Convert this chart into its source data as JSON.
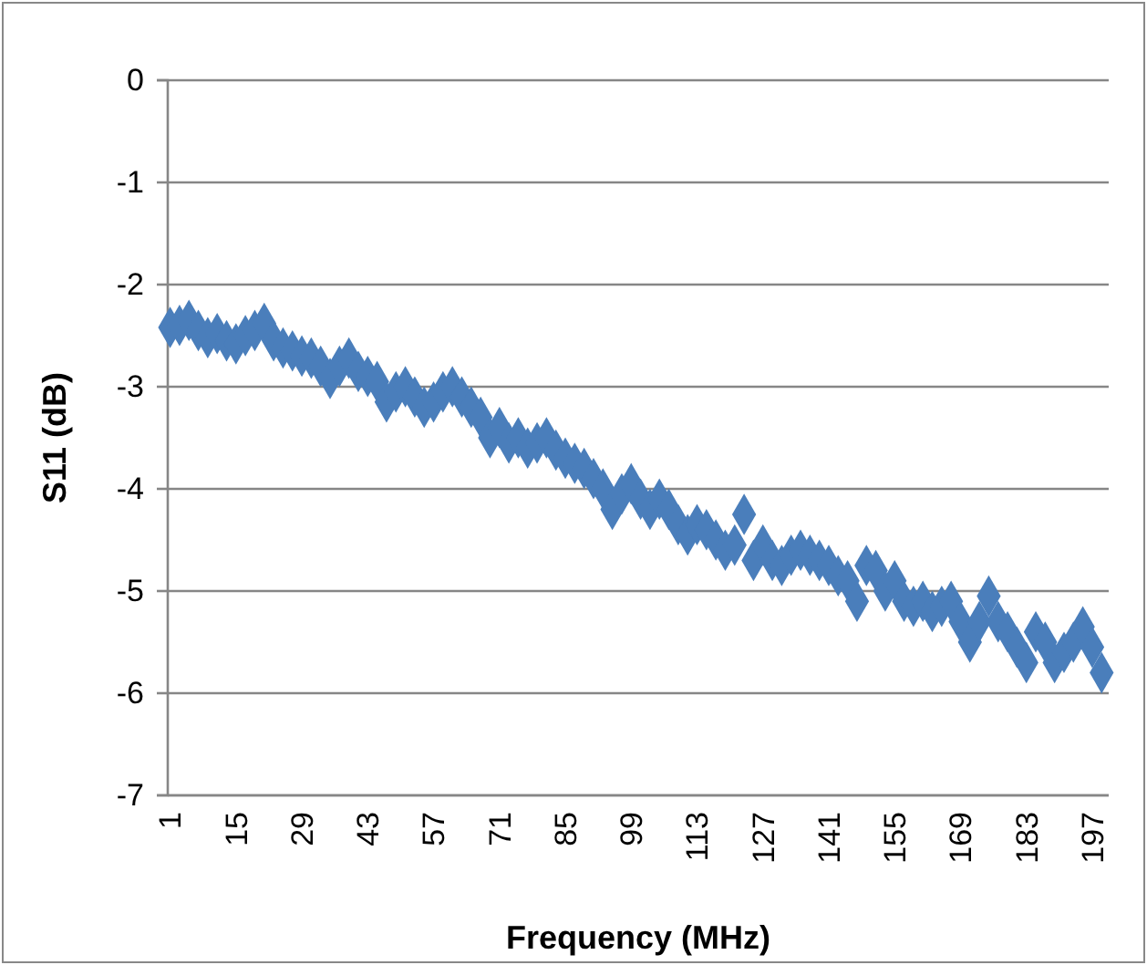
{
  "chart_data": {
    "type": "scatter",
    "xlabel": "Frequency (MHz)",
    "ylabel": "S11 (dB)",
    "marker": "diamond",
    "grid": "y",
    "color": "#4a7ebb",
    "x": [
      1,
      3,
      5,
      7,
      9,
      11,
      13,
      15,
      17,
      19,
      21,
      23,
      25,
      27,
      29,
      31,
      33,
      35,
      37,
      39,
      41,
      43,
      45,
      47,
      49,
      51,
      53,
      55,
      57,
      59,
      61,
      63,
      65,
      67,
      69,
      71,
      73,
      75,
      77,
      79,
      81,
      83,
      85,
      87,
      89,
      91,
      93,
      95,
      97,
      99,
      101,
      103,
      105,
      107,
      109,
      111,
      113,
      115,
      117,
      119,
      121,
      123,
      125,
      127,
      129,
      131,
      133,
      135,
      137,
      139,
      141,
      143,
      145,
      147,
      149,
      151,
      153,
      155,
      157,
      159,
      161,
      163,
      165,
      167,
      169,
      171,
      173,
      175,
      177,
      179,
      181,
      183,
      185,
      187,
      189,
      191,
      193,
      195,
      197,
      199
    ],
    "values": [
      -2.42,
      -2.4,
      -2.35,
      -2.45,
      -2.52,
      -2.48,
      -2.55,
      -2.58,
      -2.5,
      -2.45,
      -2.38,
      -2.55,
      -2.62,
      -2.65,
      -2.7,
      -2.72,
      -2.8,
      -2.92,
      -2.8,
      -2.72,
      -2.85,
      -2.9,
      -2.95,
      -3.15,
      -3.05,
      -3.0,
      -3.1,
      -3.2,
      -3.15,
      -3.05,
      -3.0,
      -3.1,
      -3.2,
      -3.3,
      -3.5,
      -3.4,
      -3.55,
      -3.5,
      -3.6,
      -3.55,
      -3.5,
      -3.62,
      -3.7,
      -3.75,
      -3.8,
      -3.9,
      -4.0,
      -4.2,
      -4.05,
      -3.95,
      -4.1,
      -4.2,
      -4.1,
      -4.2,
      -4.35,
      -4.45,
      -4.35,
      -4.4,
      -4.5,
      -4.6,
      -4.55,
      -4.25,
      -4.7,
      -4.55,
      -4.7,
      -4.75,
      -4.65,
      -4.6,
      -4.65,
      -4.7,
      -4.75,
      -4.85,
      -4.9,
      -5.1,
      -4.75,
      -4.8,
      -5.0,
      -4.9,
      -5.1,
      -5.15,
      -5.1,
      -5.2,
      -5.15,
      -5.1,
      -5.3,
      -5.5,
      -5.3,
      -5.05,
      -5.3,
      -5.4,
      -5.55,
      -5.7,
      -5.4,
      -5.5,
      -5.7,
      -5.6,
      -5.5,
      -5.35,
      -5.55,
      -5.8
    ],
    "xlim": [
      0.5,
      200.5
    ],
    "xticks": [
      1,
      15,
      29,
      43,
      57,
      71,
      85,
      99,
      113,
      127,
      141,
      155,
      169,
      183,
      197
    ],
    "ylim": [
      -7,
      0
    ],
    "yticks": [
      -7,
      -6,
      -5,
      -4,
      -3,
      -2,
      -1,
      0
    ]
  }
}
